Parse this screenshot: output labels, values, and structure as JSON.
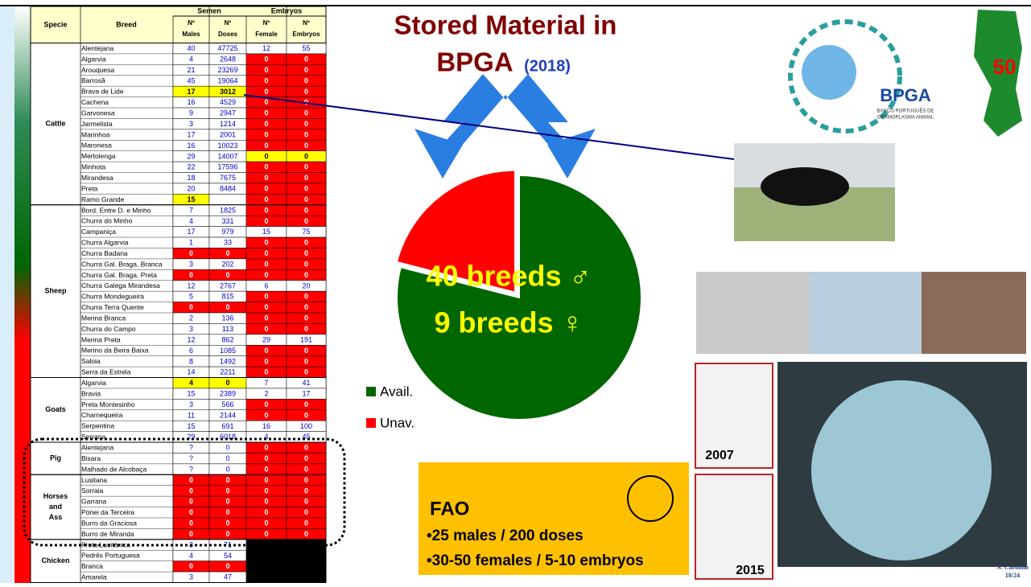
{
  "table": {
    "head": {
      "specie": "Specie",
      "breed": "Breed",
      "semen": "Semen",
      "embryos": "Embryos",
      "cols": [
        [
          "Nº",
          "Males"
        ],
        [
          "Nº",
          "Doses"
        ],
        [
          "Nº",
          "Female"
        ],
        [
          "Nº",
          "Embryos"
        ]
      ]
    },
    "groups": [
      {
        "label": [
          "Cattle"
        ],
        "rows": [
          {
            "breed": "Alentejana",
            "values": [
              40,
              47725,
              12,
              55
            ],
            "colors": [
              "white",
              "white",
              "white",
              "white"
            ]
          },
          {
            "breed": "Algarvia",
            "values": [
              4,
              2648,
              0,
              0
            ],
            "colors": [
              "white",
              "white",
              "red",
              "red"
            ]
          },
          {
            "breed": "Arouquesa",
            "values": [
              21,
              23269,
              0,
              0
            ],
            "colors": [
              "white",
              "white",
              "red",
              "red"
            ]
          },
          {
            "breed": "Barrosã",
            "values": [
              45,
              19064,
              0,
              0
            ],
            "colors": [
              "white",
              "white",
              "red",
              "red"
            ]
          },
          {
            "breed": "Brava de Lide",
            "values": [
              17,
              3012,
              0,
              0
            ],
            "colors": [
              "yellow",
              "yellow",
              "red",
              "red"
            ]
          },
          {
            "breed": "Cachena",
            "values": [
              16,
              4529,
              0,
              0
            ],
            "colors": [
              "white",
              "white",
              "red",
              "red"
            ]
          },
          {
            "breed": "Garvonesa",
            "values": [
              9,
              2947,
              0,
              0
            ],
            "colors": [
              "white",
              "white",
              "red",
              "red"
            ]
          },
          {
            "breed": "Jarmelista",
            "values": [
              3,
              1214,
              0,
              0
            ],
            "colors": [
              "white",
              "white",
              "red",
              "red"
            ]
          },
          {
            "breed": "Marinhoa",
            "values": [
              17,
              2001,
              0,
              0
            ],
            "colors": [
              "white",
              "white",
              "red",
              "red"
            ]
          },
          {
            "breed": "Maronesa",
            "values": [
              16,
              10023,
              0,
              0
            ],
            "colors": [
              "white",
              "white",
              "red",
              "red"
            ]
          },
          {
            "breed": "Mertolenga",
            "values": [
              29,
              14007,
              0,
              0
            ],
            "colors": [
              "white",
              "white",
              "yellow",
              "yellow"
            ]
          },
          {
            "breed": "Minhota",
            "values": [
              22,
              17596,
              0,
              0
            ],
            "colors": [
              "white",
              "white",
              "red",
              "red"
            ]
          },
          {
            "breed": "Mirandesa",
            "values": [
              18,
              7675,
              0,
              0
            ],
            "colors": [
              "white",
              "white",
              "red",
              "red"
            ]
          },
          {
            "breed": "Preta",
            "values": [
              20,
              8484,
              0,
              0
            ],
            "colors": [
              "white",
              "white",
              "red",
              "red"
            ]
          },
          {
            "breed": "Ramo Grande",
            "values": [
              15,
              null,
              0,
              0
            ],
            "colors": [
              "yellow",
              "white",
              "red",
              "red"
            ]
          }
        ]
      },
      {
        "label": [
          "Sheep"
        ],
        "rows": [
          {
            "breed": "Bord. Entre D. e Minho",
            "values": [
              7,
              1825,
              0,
              0
            ],
            "colors": [
              "white",
              "white",
              "red",
              "red"
            ]
          },
          {
            "breed": "Churra do Minho",
            "values": [
              4,
              331,
              0,
              0
            ],
            "colors": [
              "white",
              "white",
              "red",
              "red"
            ]
          },
          {
            "breed": "Campaniça",
            "values": [
              17,
              979,
              15,
              75
            ],
            "colors": [
              "white",
              "white",
              "white",
              "white"
            ]
          },
          {
            "breed": "Churra Algarvia",
            "values": [
              1,
              33,
              0,
              0
            ],
            "colors": [
              "white",
              "white",
              "red",
              "red"
            ]
          },
          {
            "breed": "Churra Badana",
            "values": [
              0,
              0,
              0,
              0
            ],
            "colors": [
              "red",
              "red",
              "red",
              "red"
            ]
          },
          {
            "breed": "Churra Gal. Braga. Branca",
            "values": [
              3,
              202,
              0,
              0
            ],
            "colors": [
              "white",
              "white",
              "red",
              "red"
            ]
          },
          {
            "breed": "Churra Gal. Braga. Preta",
            "values": [
              0,
              0,
              0,
              0
            ],
            "colors": [
              "red",
              "red",
              "red",
              "red"
            ]
          },
          {
            "breed": "Churra Galega Mirandesa",
            "values": [
              12,
              2767,
              6,
              20
            ],
            "colors": [
              "white",
              "white",
              "white",
              "white"
            ]
          },
          {
            "breed": "Churra Mondegueira",
            "values": [
              5,
              815,
              0,
              0
            ],
            "colors": [
              "white",
              "white",
              "red",
              "red"
            ]
          },
          {
            "breed": "Churra Terra Quente",
            "values": [
              0,
              0,
              0,
              0
            ],
            "colors": [
              "red",
              "red",
              "red",
              "red"
            ]
          },
          {
            "breed": "Merina Branca",
            "values": [
              2,
              136,
              0,
              0
            ],
            "colors": [
              "white",
              "white",
              "red",
              "red"
            ]
          },
          {
            "breed": "Churra do Campo",
            "values": [
              3,
              113,
              0,
              0
            ],
            "colors": [
              "white",
              "white",
              "red",
              "red"
            ]
          },
          {
            "breed": "Merina Preta",
            "values": [
              12,
              862,
              29,
              191
            ],
            "colors": [
              "white",
              "white",
              "white",
              "white"
            ]
          },
          {
            "breed": "Merino da Beira Baixa",
            "values": [
              6,
              1085,
              0,
              0
            ],
            "colors": [
              "white",
              "white",
              "red",
              "red"
            ]
          },
          {
            "breed": "Saloia",
            "values": [
              8,
              1492,
              0,
              0
            ],
            "colors": [
              "white",
              "white",
              "red",
              "red"
            ]
          },
          {
            "breed": "Serra da Estrela",
            "values": [
              14,
              2211,
              0,
              0
            ],
            "colors": [
              "white",
              "white",
              "red",
              "red"
            ]
          }
        ]
      },
      {
        "label": [
          "Goats"
        ],
        "rows": [
          {
            "breed": "Algarvia",
            "values": [
              4,
              0,
              7,
              41
            ],
            "colors": [
              "yellow",
              "yellow",
              "white",
              "white"
            ]
          },
          {
            "breed": "Bravia",
            "values": [
              15,
              2389,
              2,
              17
            ],
            "colors": [
              "white",
              "white",
              "white",
              "white"
            ]
          },
          {
            "breed": "Preta Montesinho",
            "values": [
              3,
              566,
              0,
              0
            ],
            "colors": [
              "white",
              "white",
              "red",
              "red"
            ]
          },
          {
            "breed": "Charnequeira",
            "values": [
              11,
              2144,
              0,
              0
            ],
            "colors": [
              "white",
              "white",
              "red",
              "red"
            ]
          },
          {
            "breed": "Serpentina",
            "values": [
              15,
              691,
              16,
              100
            ],
            "colors": [
              "white",
              "white",
              "white",
              "white"
            ]
          },
          {
            "breed": "Serrana",
            "values": [
              29,
              6018,
              4,
              45
            ],
            "colors": [
              "white",
              "white",
              "white",
              "white"
            ]
          }
        ]
      },
      {
        "label": [
          "Pig"
        ],
        "rows": [
          {
            "breed": "Alentejana",
            "values": [
              "?",
              0,
              0,
              0
            ],
            "colors": [
              "white",
              "white",
              "red",
              "red"
            ]
          },
          {
            "breed": "Bisara",
            "values": [
              "?",
              0,
              0,
              0
            ],
            "colors": [
              "white",
              "white",
              "red",
              "red"
            ]
          },
          {
            "breed": "Malhado de Alcobaça",
            "values": [
              "?",
              0,
              0,
              0
            ],
            "colors": [
              "white",
              "white",
              "red",
              "red"
            ]
          }
        ]
      },
      {
        "label": [
          "Horses",
          "and",
          "Ass"
        ],
        "rows": [
          {
            "breed": "Lusitana",
            "values": [
              0,
              0,
              0,
              0
            ],
            "colors": [
              "red",
              "red",
              "red",
              "red"
            ]
          },
          {
            "breed": "Sorraia",
            "values": [
              0,
              0,
              0,
              0
            ],
            "colors": [
              "red",
              "red",
              "red",
              "red"
            ]
          },
          {
            "breed": "Garrana",
            "values": [
              0,
              0,
              0,
              0
            ],
            "colors": [
              "red",
              "red",
              "red",
              "red"
            ]
          },
          {
            "breed": "Pónei da Terceira",
            "values": [
              0,
              0,
              0,
              0
            ],
            "colors": [
              "red",
              "red",
              "red",
              "red"
            ]
          },
          {
            "breed": "Burro da Graciosa",
            "values": [
              0,
              0,
              0,
              0
            ],
            "colors": [
              "red",
              "red",
              "red",
              "red"
            ]
          },
          {
            "breed": "Burro de Miranda",
            "values": [
              0,
              0,
              0,
              0
            ],
            "colors": [
              "red",
              "red",
              "red",
              "red"
            ]
          }
        ]
      },
      {
        "label": [
          "Chicken"
        ],
        "rows": [
          {
            "breed": "Preta Lusitânica",
            "values": [
              3,
              71,
              null,
              null
            ],
            "colors": [
              "white",
              "white",
              "black",
              "black"
            ]
          },
          {
            "breed": "Pedrês Portuguesa",
            "values": [
              4,
              54,
              null,
              null
            ],
            "colors": [
              "white",
              "white",
              "black",
              "black"
            ]
          },
          {
            "breed": "Branca",
            "values": [
              0,
              0,
              null,
              null
            ],
            "colors": [
              "red",
              "red",
              "black",
              "black"
            ]
          },
          {
            "breed": "Amarela",
            "values": [
              3,
              47,
              null,
              null
            ],
            "colors": [
              "white",
              "white",
              "black",
              "black"
            ]
          }
        ]
      }
    ]
  },
  "chart_data": {
    "type": "pie",
    "title": "Stored Material in",
    "title_line2": "BPGA",
    "year": "(2018)",
    "categories": [
      "Avail.",
      "Unav."
    ],
    "values": [
      79,
      21
    ],
    "colors": [
      "#006600",
      "#ff0000"
    ],
    "annotations": [
      "40 breeds ♂",
      "9 breeds ♀"
    ]
  },
  "logo": {
    "name": "BPGA",
    "line1": "BANCO PORTUGUÊS DE",
    "line2": "GERMOPLASMA ANIMAL"
  },
  "map_label": "50",
  "fao": {
    "title": "FAO",
    "lines": [
      "•25 males / 200 doses",
      "•30-50 females / 5-10 embryos"
    ]
  },
  "books": [
    "2007",
    "2015"
  ],
  "footer": [
    "N. Carolino",
    "18/24"
  ]
}
